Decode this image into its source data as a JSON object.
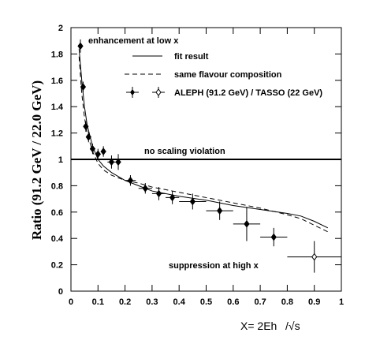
{
  "chart_data": {
    "type": "scatter",
    "ylabel": "Ratio (91.2 GeV / 22.0 GeV)",
    "xlabel": "X= 2E_h /√s",
    "xlim": [
      0,
      1
    ],
    "ylim": [
      0,
      2
    ],
    "x_ticks": [
      0,
      0.1,
      0.2,
      0.3,
      0.4,
      0.5,
      0.6,
      0.7,
      0.8,
      0.9,
      1
    ],
    "x_tick_labels": [
      "0",
      "0.1",
      "0.2",
      "0.3",
      "0.4",
      "0.5",
      "0.6",
      "0.7",
      "0.8",
      "0.9",
      "1"
    ],
    "y_ticks": [
      0,
      0.2,
      0.4,
      0.6,
      0.8,
      1,
      1.2,
      1.4,
      1.6,
      1.8,
      2
    ],
    "y_tick_labels": [
      "0",
      "0.2",
      "0.4",
      "0.6",
      "0.8",
      "1",
      "1.2",
      "1.4",
      "1.6",
      "1.8",
      "2"
    ],
    "grid": false,
    "legend_position": "top-right",
    "annotations": {
      "top": "enhancement at low x",
      "middle": "no scaling violation",
      "bottom": "suppression at high x"
    },
    "legend": {
      "fit": "fit result",
      "composition": "same flavour composition",
      "data": "ALEPH (91.2 GeV) / TASSO (22 GeV)"
    },
    "reference_line": {
      "y": 1
    },
    "series": [
      {
        "name": "fit result",
        "style": "solid",
        "x": [
          0.03,
          0.04,
          0.05,
          0.06,
          0.08,
          0.1,
          0.12,
          0.15,
          0.2,
          0.25,
          0.3,
          0.4,
          0.5,
          0.6,
          0.7,
          0.8,
          0.85,
          0.9,
          0.95
        ],
        "y": [
          1.84,
          1.6,
          1.4,
          1.26,
          1.1,
          1.0,
          0.95,
          0.9,
          0.84,
          0.8,
          0.76,
          0.72,
          0.69,
          0.65,
          0.62,
          0.59,
          0.57,
          0.53,
          0.48
        ]
      },
      {
        "name": "same flavour composition",
        "style": "dashed",
        "x": [
          0.03,
          0.04,
          0.05,
          0.06,
          0.08,
          0.1,
          0.12,
          0.15,
          0.2,
          0.25,
          0.3,
          0.4,
          0.5,
          0.6,
          0.7,
          0.8,
          0.85,
          0.9,
          0.95
        ],
        "y": [
          1.78,
          1.5,
          1.32,
          1.2,
          1.06,
          0.97,
          0.92,
          0.88,
          0.84,
          0.82,
          0.79,
          0.75,
          0.71,
          0.67,
          0.63,
          0.58,
          0.55,
          0.5,
          0.45
        ]
      },
      {
        "name": "ALEPH (91.2 GeV) / TASSO (22 GeV)",
        "points": [
          {
            "x": 0.035,
            "y": 1.86,
            "xerr": 0.005,
            "yerr": 0.05
          },
          {
            "x": 0.045,
            "y": 1.55,
            "xerr": 0.005,
            "yerr": 0.04
          },
          {
            "x": 0.055,
            "y": 1.25,
            "xerr": 0.005,
            "yerr": 0.04
          },
          {
            "x": 0.065,
            "y": 1.17,
            "xerr": 0.005,
            "yerr": 0.04
          },
          {
            "x": 0.08,
            "y": 1.08,
            "xerr": 0.01,
            "yerr": 0.04
          },
          {
            "x": 0.1,
            "y": 1.04,
            "xerr": 0.01,
            "yerr": 0.04
          },
          {
            "x": 0.12,
            "y": 1.06,
            "xerr": 0.01,
            "yerr": 0.04
          },
          {
            "x": 0.15,
            "y": 0.98,
            "xerr": 0.015,
            "yerr": 0.05
          },
          {
            "x": 0.175,
            "y": 0.98,
            "xerr": 0.01,
            "yerr": 0.06
          },
          {
            "x": 0.22,
            "y": 0.84,
            "xerr": 0.02,
            "yerr": 0.04
          },
          {
            "x": 0.275,
            "y": 0.78,
            "xerr": 0.025,
            "yerr": 0.04
          },
          {
            "x": 0.325,
            "y": 0.74,
            "xerr": 0.025,
            "yerr": 0.05
          },
          {
            "x": 0.375,
            "y": 0.71,
            "xerr": 0.025,
            "yerr": 0.05
          },
          {
            "x": 0.45,
            "y": 0.68,
            "xerr": 0.05,
            "yerr": 0.06
          },
          {
            "x": 0.55,
            "y": 0.61,
            "xerr": 0.05,
            "yerr": 0.07
          },
          {
            "x": 0.65,
            "y": 0.51,
            "xerr": 0.05,
            "yerr": 0.13
          },
          {
            "x": 0.75,
            "y": 0.41,
            "xerr": 0.05,
            "yerr": 0.07
          },
          {
            "x": 0.9,
            "y": 0.26,
            "xerr": 0.1,
            "yerr": 0.12,
            "open": true
          }
        ]
      }
    ]
  }
}
